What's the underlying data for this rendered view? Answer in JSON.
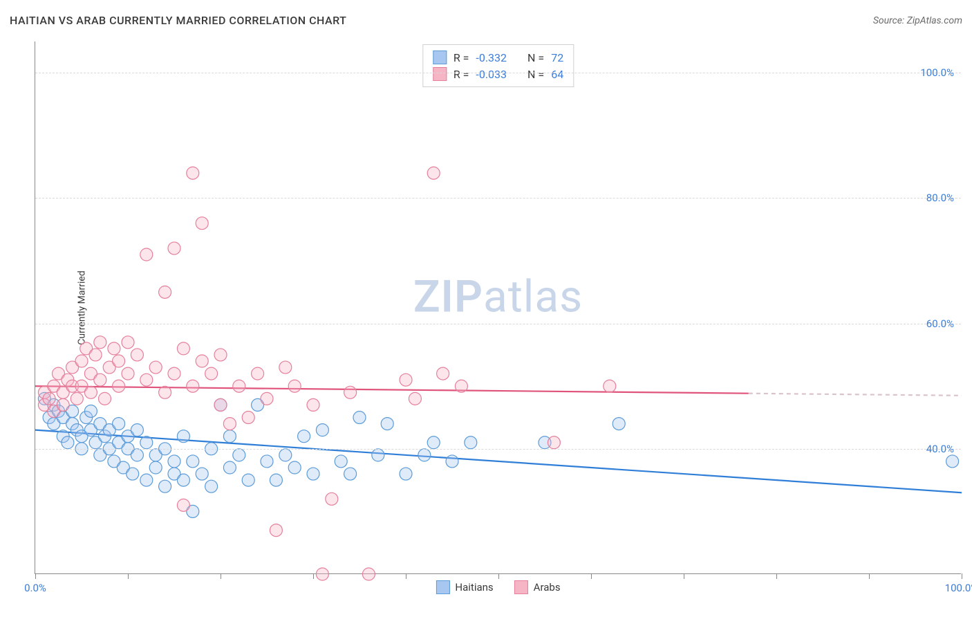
{
  "header": {
    "title": "HAITIAN VS ARAB CURRENTLY MARRIED CORRELATION CHART",
    "source": "Source: ZipAtlas.com"
  },
  "chart": {
    "type": "scatter",
    "ylabel": "Currently Married",
    "background_color": "#ffffff",
    "grid_color": "#d9d9d9",
    "axis_color": "#888888",
    "tick_label_color": "#3b7dd8",
    "tick_fontsize": 15,
    "title_fontsize": 16,
    "label_fontsize": 14,
    "xlim": [
      0,
      100
    ],
    "ylim": [
      20,
      105
    ],
    "x_ticks": [
      0,
      10,
      20,
      30,
      40,
      50,
      60,
      70,
      80,
      90,
      100
    ],
    "x_tick_labels": {
      "0": "0.0%",
      "100": "100.0%"
    },
    "y_ticks": [
      40,
      60,
      80,
      100
    ],
    "y_tick_labels": {
      "40": "40.0%",
      "60": "60.0%",
      "80": "80.0%",
      "100": "100.0%"
    },
    "marker_radius": 9,
    "marker_fill_opacity": 0.35,
    "marker_stroke_width": 1.2,
    "trend_line_width": 2.2,
    "watermark": "ZIPatlas",
    "series": [
      {
        "id": "haitians",
        "label": "Haitians",
        "color_fill": "#a7c7f0",
        "color_stroke": "#5a9bd8",
        "trend_color": "#2f7ed8",
        "trend_start": {
          "x": 0,
          "y": 43
        },
        "trend_end": {
          "x": 100,
          "y": 33
        },
        "trend_dash_from": null,
        "points": [
          {
            "x": 1,
            "y": 48
          },
          {
            "x": 1.5,
            "y": 45
          },
          {
            "x": 2,
            "y": 44
          },
          {
            "x": 2,
            "y": 47
          },
          {
            "x": 2.5,
            "y": 46
          },
          {
            "x": 3,
            "y": 45
          },
          {
            "x": 3,
            "y": 42
          },
          {
            "x": 3.5,
            "y": 41
          },
          {
            "x": 4,
            "y": 44
          },
          {
            "x": 4,
            "y": 46
          },
          {
            "x": 4.5,
            "y": 43
          },
          {
            "x": 5,
            "y": 42
          },
          {
            "x": 5,
            "y": 40
          },
          {
            "x": 5.5,
            "y": 45
          },
          {
            "x": 6,
            "y": 43
          },
          {
            "x": 6,
            "y": 46
          },
          {
            "x": 6.5,
            "y": 41
          },
          {
            "x": 7,
            "y": 44
          },
          {
            "x": 7,
            "y": 39
          },
          {
            "x": 7.5,
            "y": 42
          },
          {
            "x": 8,
            "y": 40
          },
          {
            "x": 8,
            "y": 43
          },
          {
            "x": 8.5,
            "y": 38
          },
          {
            "x": 9,
            "y": 41
          },
          {
            "x": 9,
            "y": 44
          },
          {
            "x": 9.5,
            "y": 37
          },
          {
            "x": 10,
            "y": 40
          },
          {
            "x": 10,
            "y": 42
          },
          {
            "x": 10.5,
            "y": 36
          },
          {
            "x": 11,
            "y": 39
          },
          {
            "x": 11,
            "y": 43
          },
          {
            "x": 12,
            "y": 35
          },
          {
            "x": 12,
            "y": 41
          },
          {
            "x": 13,
            "y": 37
          },
          {
            "x": 13,
            "y": 39
          },
          {
            "x": 14,
            "y": 34
          },
          {
            "x": 14,
            "y": 40
          },
          {
            "x": 15,
            "y": 36
          },
          {
            "x": 15,
            "y": 38
          },
          {
            "x": 16,
            "y": 35
          },
          {
            "x": 16,
            "y": 42
          },
          {
            "x": 17,
            "y": 30
          },
          {
            "x": 17,
            "y": 38
          },
          {
            "x": 18,
            "y": 36
          },
          {
            "x": 19,
            "y": 34
          },
          {
            "x": 19,
            "y": 40
          },
          {
            "x": 20,
            "y": 47
          },
          {
            "x": 21,
            "y": 42
          },
          {
            "x": 21,
            "y": 37
          },
          {
            "x": 22,
            "y": 39
          },
          {
            "x": 23,
            "y": 35
          },
          {
            "x": 24,
            "y": 47
          },
          {
            "x": 25,
            "y": 38
          },
          {
            "x": 26,
            "y": 35
          },
          {
            "x": 27,
            "y": 39
          },
          {
            "x": 28,
            "y": 37
          },
          {
            "x": 29,
            "y": 42
          },
          {
            "x": 30,
            "y": 36
          },
          {
            "x": 31,
            "y": 43
          },
          {
            "x": 33,
            "y": 38
          },
          {
            "x": 34,
            "y": 36
          },
          {
            "x": 35,
            "y": 45
          },
          {
            "x": 37,
            "y": 39
          },
          {
            "x": 38,
            "y": 44
          },
          {
            "x": 40,
            "y": 36
          },
          {
            "x": 42,
            "y": 39
          },
          {
            "x": 43,
            "y": 41
          },
          {
            "x": 45,
            "y": 38
          },
          {
            "x": 47,
            "y": 41
          },
          {
            "x": 55,
            "y": 41
          },
          {
            "x": 63,
            "y": 44
          },
          {
            "x": 99,
            "y": 38
          }
        ]
      },
      {
        "id": "arabs",
        "label": "Arabs",
        "color_fill": "#f5b5c5",
        "color_stroke": "#e57f9b",
        "trend_color": "#e0547b",
        "trend_start": {
          "x": 0,
          "y": 50
        },
        "trend_end": {
          "x": 100,
          "y": 48.5
        },
        "trend_dash_from": 77,
        "points": [
          {
            "x": 1,
            "y": 47
          },
          {
            "x": 1,
            "y": 49
          },
          {
            "x": 1.5,
            "y": 48
          },
          {
            "x": 2,
            "y": 50
          },
          {
            "x": 2,
            "y": 46
          },
          {
            "x": 2.5,
            "y": 52
          },
          {
            "x": 3,
            "y": 49
          },
          {
            "x": 3,
            "y": 47
          },
          {
            "x": 3.5,
            "y": 51
          },
          {
            "x": 4,
            "y": 50
          },
          {
            "x": 4,
            "y": 53
          },
          {
            "x": 4.5,
            "y": 48
          },
          {
            "x": 5,
            "y": 54
          },
          {
            "x": 5,
            "y": 50
          },
          {
            "x": 5.5,
            "y": 56
          },
          {
            "x": 6,
            "y": 52
          },
          {
            "x": 6,
            "y": 49
          },
          {
            "x": 6.5,
            "y": 55
          },
          {
            "x": 7,
            "y": 51
          },
          {
            "x": 7,
            "y": 57
          },
          {
            "x": 7.5,
            "y": 48
          },
          {
            "x": 8,
            "y": 53
          },
          {
            "x": 8.5,
            "y": 56
          },
          {
            "x": 9,
            "y": 50
          },
          {
            "x": 9,
            "y": 54
          },
          {
            "x": 10,
            "y": 52
          },
          {
            "x": 10,
            "y": 57
          },
          {
            "x": 11,
            "y": 55
          },
          {
            "x": 12,
            "y": 51
          },
          {
            "x": 12,
            "y": 71
          },
          {
            "x": 13,
            "y": 53
          },
          {
            "x": 14,
            "y": 65
          },
          {
            "x": 14,
            "y": 49
          },
          {
            "x": 15,
            "y": 72
          },
          {
            "x": 15,
            "y": 52
          },
          {
            "x": 16,
            "y": 56
          },
          {
            "x": 16,
            "y": 31
          },
          {
            "x": 17,
            "y": 84
          },
          {
            "x": 17,
            "y": 50
          },
          {
            "x": 18,
            "y": 54
          },
          {
            "x": 18,
            "y": 76
          },
          {
            "x": 19,
            "y": 52
          },
          {
            "x": 20,
            "y": 47
          },
          {
            "x": 20,
            "y": 55
          },
          {
            "x": 21,
            "y": 44
          },
          {
            "x": 22,
            "y": 50
          },
          {
            "x": 23,
            "y": 45
          },
          {
            "x": 24,
            "y": 52
          },
          {
            "x": 25,
            "y": 48
          },
          {
            "x": 26,
            "y": 27
          },
          {
            "x": 27,
            "y": 53
          },
          {
            "x": 28,
            "y": 50
          },
          {
            "x": 30,
            "y": 47
          },
          {
            "x": 31,
            "y": 20
          },
          {
            "x": 32,
            "y": 32
          },
          {
            "x": 34,
            "y": 49
          },
          {
            "x": 36,
            "y": 20
          },
          {
            "x": 40,
            "y": 51
          },
          {
            "x": 41,
            "y": 48
          },
          {
            "x": 43,
            "y": 84
          },
          {
            "x": 44,
            "y": 52
          },
          {
            "x": 46,
            "y": 50
          },
          {
            "x": 56,
            "y": 41
          },
          {
            "x": 62,
            "y": 50
          }
        ]
      }
    ],
    "stats_legend": [
      {
        "series": "haitians",
        "r_label": "R =",
        "r_value": "-0.332",
        "n_label": "N =",
        "n_value": "72"
      },
      {
        "series": "arabs",
        "r_label": "R =",
        "r_value": "-0.033",
        "n_label": "N =",
        "n_value": "64"
      }
    ]
  }
}
